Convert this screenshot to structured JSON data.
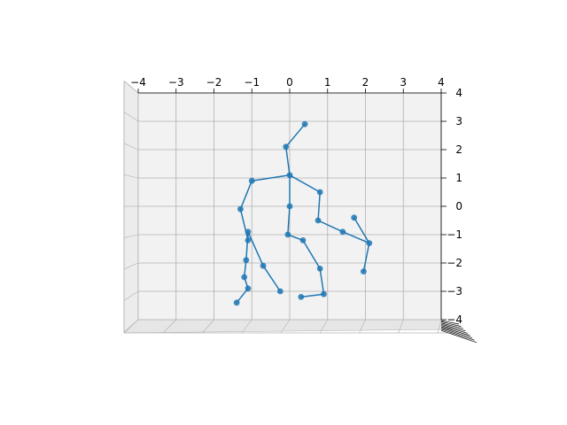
{
  "colors": {
    "series": "#1f77b4",
    "pane": "#f2f2f2",
    "grid": "#b0b0b0",
    "axis": "#000000"
  },
  "chart_data": {
    "type": "scatter",
    "projection": "3d",
    "title": "",
    "xlabel": "",
    "ylabel": "",
    "zlabel": "",
    "xlim": [
      -4,
      4
    ],
    "zlim": [
      -4,
      4
    ],
    "grid": true,
    "legend": "none",
    "x_ticks": [
      "−4",
      "−3",
      "−2",
      "−1",
      "0",
      "1",
      "2",
      "3",
      "4"
    ],
    "z_ticks": [
      "−4",
      "−3",
      "−2",
      "−1",
      "0",
      "1",
      "2",
      "3",
      "4"
    ],
    "points": [
      {
        "x": 0.4,
        "z": 2.9
      },
      {
        "x": -0.1,
        "z": 2.1
      },
      {
        "x": 0.0,
        "z": 1.1
      },
      {
        "x": -1.0,
        "z": 0.9
      },
      {
        "x": -1.3,
        "z": -0.1
      },
      {
        "x": -1.1,
        "z": -1.2
      },
      {
        "x": -1.1,
        "z": -0.9
      },
      {
        "x": -1.15,
        "z": -1.9
      },
      {
        "x": -1.2,
        "z": -2.5
      },
      {
        "x": -1.1,
        "z": -2.9
      },
      {
        "x": -1.4,
        "z": -3.4
      },
      {
        "x": -0.7,
        "z": -2.1
      },
      {
        "x": -0.25,
        "z": -3.0
      },
      {
        "x": 0.0,
        "z": 0.0
      },
      {
        "x": -0.05,
        "z": -1.0
      },
      {
        "x": 0.35,
        "z": -1.2
      },
      {
        "x": 0.8,
        "z": -2.2
      },
      {
        "x": 0.9,
        "z": -3.1
      },
      {
        "x": 0.3,
        "z": -3.2
      },
      {
        "x": 0.8,
        "z": 0.5
      },
      {
        "x": 0.75,
        "z": -0.5
      },
      {
        "x": 1.4,
        "z": -0.9
      },
      {
        "x": 2.1,
        "z": -1.3
      },
      {
        "x": 1.7,
        "z": -0.4
      },
      {
        "x": 1.95,
        "z": -2.3
      }
    ],
    "segments": [
      [
        0,
        1
      ],
      [
        1,
        2
      ],
      [
        2,
        3
      ],
      [
        3,
        4
      ],
      [
        4,
        5
      ],
      [
        5,
        6
      ],
      [
        6,
        7
      ],
      [
        7,
        8
      ],
      [
        8,
        9
      ],
      [
        9,
        10
      ],
      [
        6,
        11
      ],
      [
        11,
        12
      ],
      [
        2,
        13
      ],
      [
        13,
        14
      ],
      [
        14,
        15
      ],
      [
        15,
        16
      ],
      [
        16,
        17
      ],
      [
        17,
        18
      ],
      [
        2,
        19
      ],
      [
        19,
        20
      ],
      [
        20,
        21
      ],
      [
        21,
        22
      ],
      [
        22,
        23
      ],
      [
        22,
        24
      ]
    ]
  }
}
